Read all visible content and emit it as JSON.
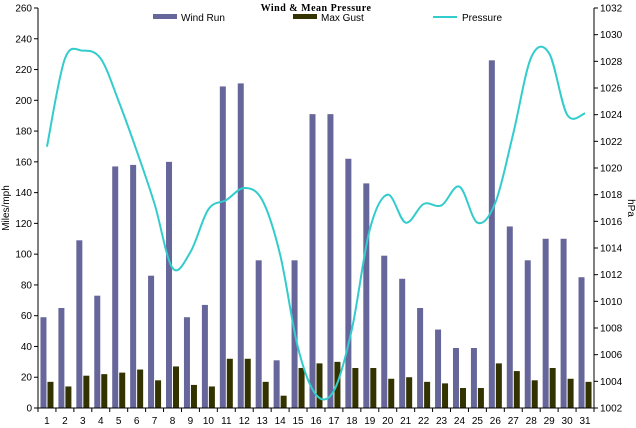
{
  "chart_data": {
    "type": "bar",
    "title": "Wind & Mean Pressure",
    "xlabel": "",
    "ylabel": "Miles/mph",
    "y2label": "hPa",
    "ylim": [
      0,
      260
    ],
    "y2lim": [
      1002,
      1032
    ],
    "yticks": [
      0,
      20,
      40,
      60,
      80,
      100,
      120,
      140,
      160,
      180,
      200,
      220,
      240,
      260
    ],
    "y2ticks": [
      1002,
      1004,
      1006,
      1008,
      1010,
      1012,
      1014,
      1016,
      1018,
      1020,
      1022,
      1024,
      1026,
      1028,
      1030,
      1032
    ],
    "categories": [
      "1",
      "2",
      "3",
      "4",
      "5",
      "6",
      "7",
      "8",
      "9",
      "10",
      "11",
      "12",
      "13",
      "14",
      "15",
      "16",
      "17",
      "18",
      "19",
      "20",
      "21",
      "22",
      "23",
      "24",
      "25",
      "26",
      "27",
      "28",
      "29",
      "30",
      "31"
    ],
    "grid": false,
    "legend_position": "top",
    "series": [
      {
        "name": "Wind Run",
        "type": "bar",
        "axis": "left",
        "color": "#66669a",
        "values": [
          59,
          65,
          109,
          73,
          157,
          158,
          86,
          160,
          59,
          67,
          209,
          211,
          96,
          31,
          96,
          191,
          191,
          162,
          146,
          99,
          84,
          65,
          51,
          39,
          39,
          226,
          118,
          96,
          110,
          110,
          85
        ]
      },
      {
        "name": "Max Gust",
        "type": "bar",
        "axis": "left",
        "color": "#333300",
        "values": [
          17,
          14,
          21,
          22,
          23,
          25,
          18,
          27,
          15,
          14,
          32,
          32,
          17,
          8,
          26,
          29,
          30,
          26,
          26,
          19,
          20,
          17,
          16,
          13,
          13,
          29,
          24,
          18,
          26,
          19,
          17
        ]
      },
      {
        "name": "Pressure",
        "type": "line",
        "axis": "right",
        "color": "#33cccc",
        "values": [
          1021.6,
          1028.2,
          1028.8,
          1028.2,
          1025.0,
          1021.3,
          1017.3,
          1012.5,
          1013.7,
          1016.9,
          1017.6,
          1018.5,
          1017.6,
          1013.5,
          1006.5,
          1003.0,
          1003.3,
          1007.9,
          1015.4,
          1018.0,
          1015.9,
          1017.3,
          1017.2,
          1018.6,
          1015.9,
          1017.4,
          1022.6,
          1028.3,
          1028.6,
          1024.0,
          1024.1
        ]
      }
    ]
  }
}
